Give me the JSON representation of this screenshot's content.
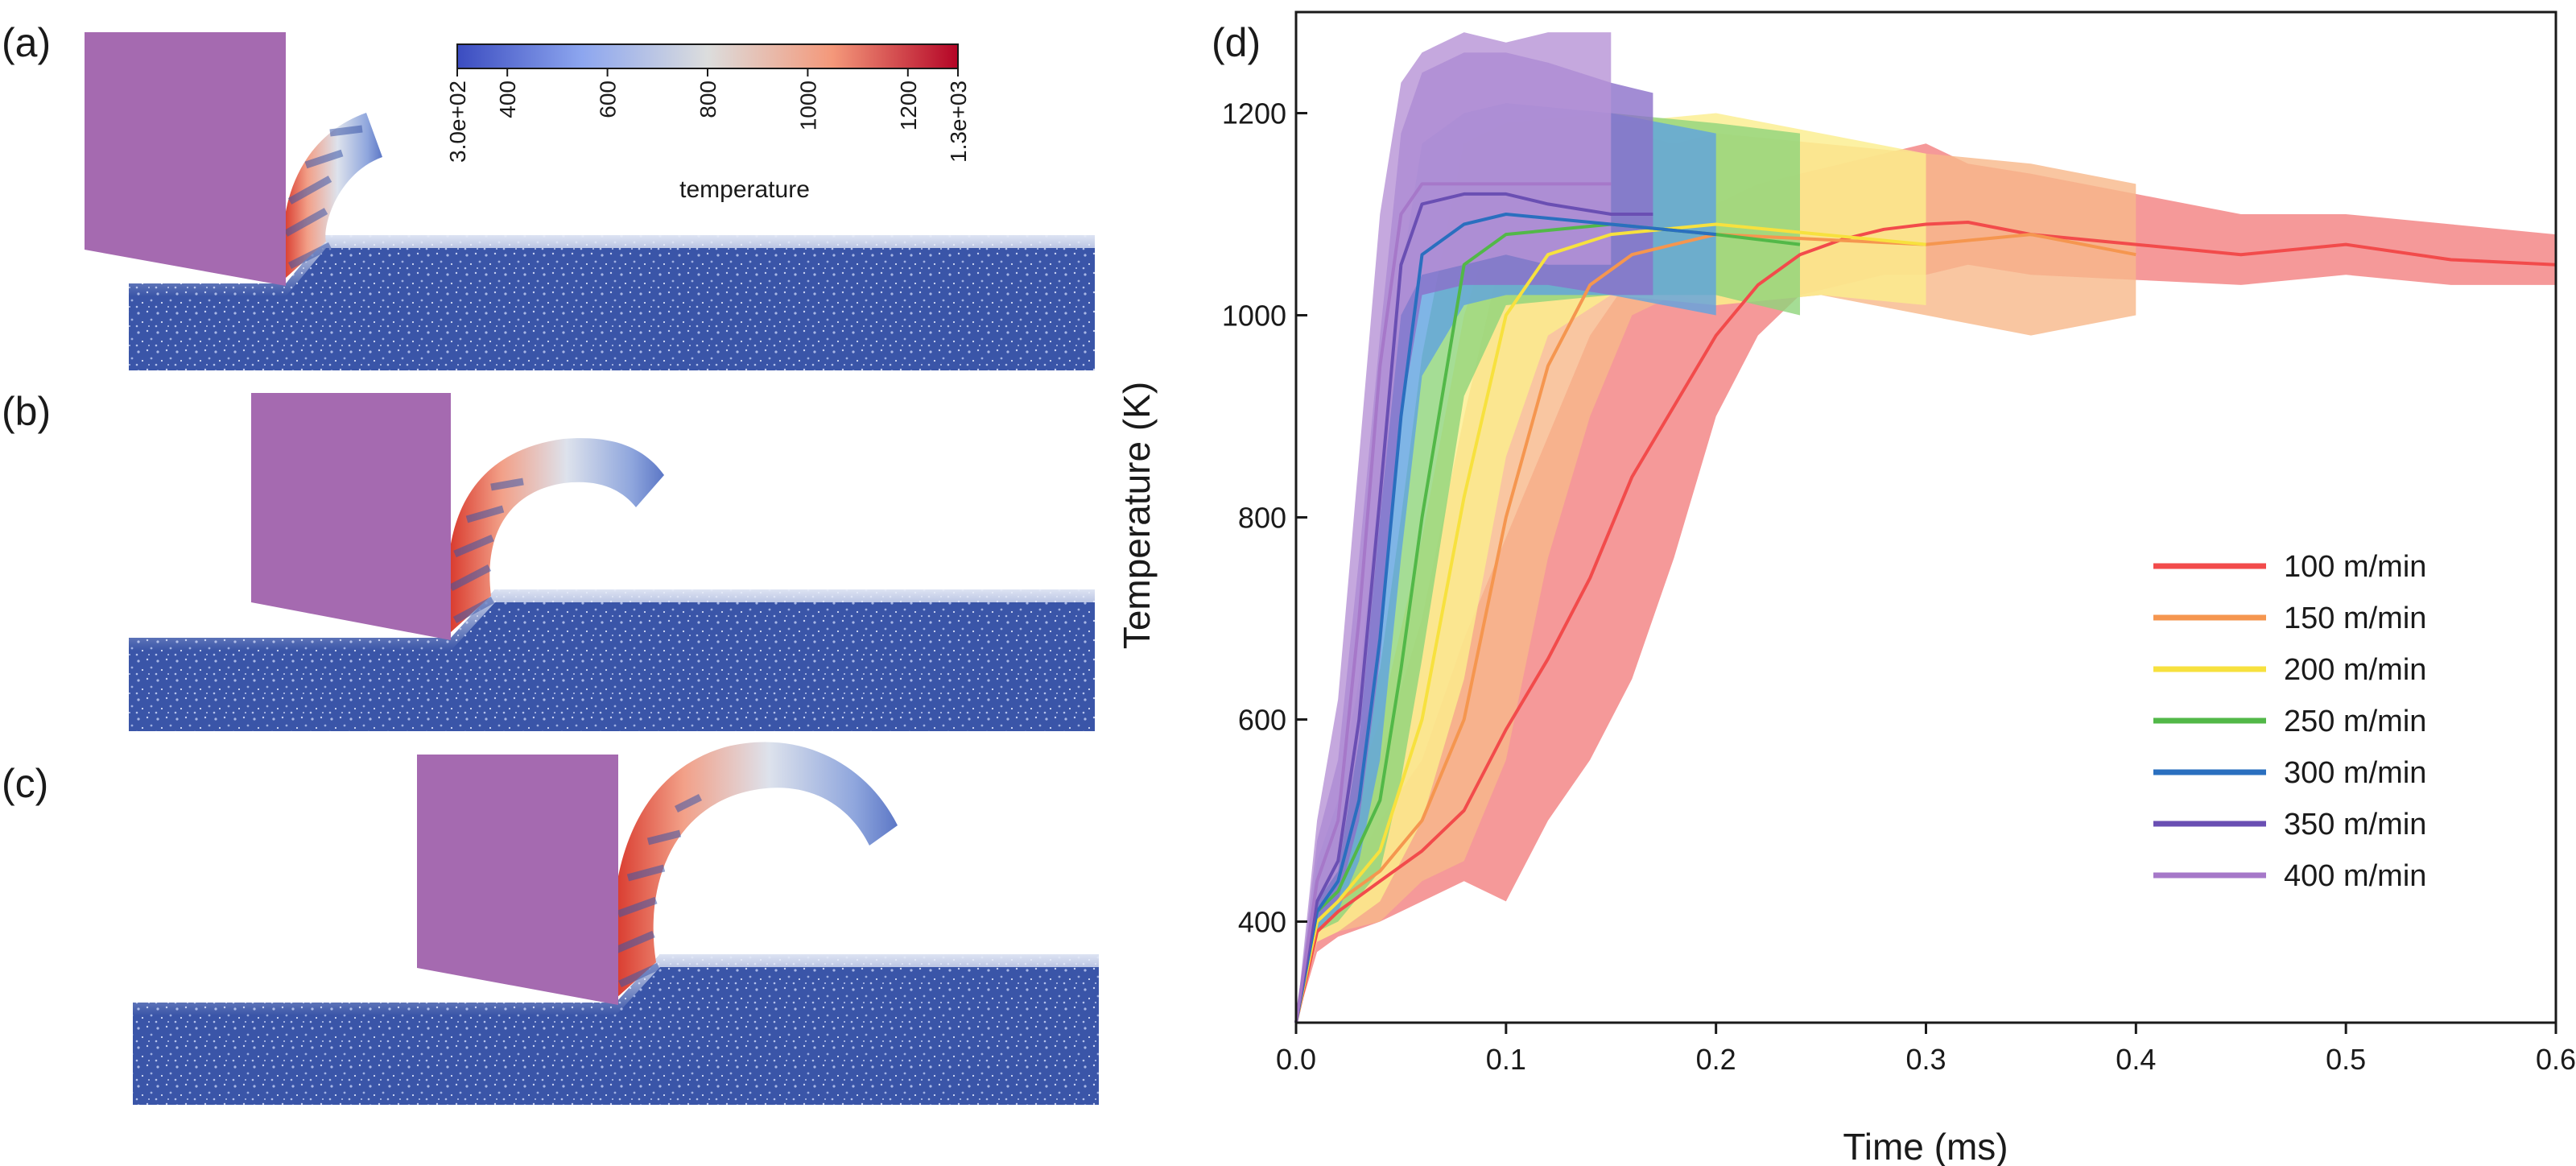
{
  "panels": {
    "a": {
      "label": "(a)"
    },
    "b": {
      "label": "(b)"
    },
    "c": {
      "label": "(c)"
    },
    "d": {
      "label": "(d)"
    }
  },
  "colorbar": {
    "title": "temperature",
    "ticks": [
      "3.0e+02",
      "400",
      "600",
      "800",
      "1000",
      "1200",
      "1.3e+03"
    ],
    "tick_values": [
      300,
      400,
      600,
      800,
      1000,
      1200,
      1300
    ],
    "colors": [
      "#3b4cc0",
      "#8da6ef",
      "#dcdddd",
      "#f4987a",
      "#b40426"
    ]
  },
  "simulation": {
    "tool_color": "#a56ab0",
    "workpiece_color": "#3a55a8"
  },
  "chart_data": {
    "type": "line",
    "xlabel": "Time (ms)",
    "ylabel": "Temperature (K)",
    "xlim": [
      0,
      0.6
    ],
    "ylim": [
      300,
      1300
    ],
    "xticks": [
      0.0,
      0.1,
      0.2,
      0.3,
      0.4,
      0.5,
      0.6
    ],
    "xtick_labels": [
      "0.0",
      "0.1",
      "0.2",
      "0.3",
      "0.4",
      "0.5",
      "0.6"
    ],
    "yticks": [
      400,
      600,
      800,
      1000,
      1200
    ],
    "ytick_labels": [
      "400",
      "600",
      "800",
      "1000",
      "1200"
    ],
    "grid": false,
    "legend_position": "right-center",
    "series": [
      {
        "name": "100 m/min",
        "color": "#f24b4b",
        "band_color": "#f28080",
        "x": [
          0,
          0.01,
          0.02,
          0.04,
          0.06,
          0.08,
          0.1,
          0.12,
          0.14,
          0.16,
          0.18,
          0.2,
          0.22,
          0.24,
          0.26,
          0.28,
          0.3,
          0.32,
          0.35,
          0.4,
          0.45,
          0.5,
          0.55,
          0.6
        ],
        "mean": [
          300,
          390,
          410,
          440,
          470,
          510,
          590,
          660,
          740,
          840,
          910,
          980,
          1030,
          1060,
          1075,
          1085,
          1090,
          1092,
          1080,
          1070,
          1060,
          1070,
          1055,
          1050
        ],
        "lower": [
          300,
          370,
          385,
          400,
          420,
          440,
          420,
          500,
          560,
          640,
          760,
          900,
          980,
          1020,
          1030,
          1040,
          1040,
          1050,
          1040,
          1035,
          1030,
          1040,
          1030,
          1030
        ],
        "upper": [
          300,
          410,
          430,
          500,
          560,
          680,
          780,
          880,
          980,
          1040,
          1080,
          1110,
          1130,
          1140,
          1150,
          1160,
          1170,
          1150,
          1140,
          1120,
          1100,
          1100,
          1090,
          1080
        ]
      },
      {
        "name": "150 m/min",
        "color": "#f5964f",
        "band_color": "#f8b88a",
        "x": [
          0,
          0.01,
          0.02,
          0.04,
          0.06,
          0.08,
          0.1,
          0.12,
          0.14,
          0.16,
          0.18,
          0.2,
          0.25,
          0.3,
          0.35,
          0.4
        ],
        "mean": [
          300,
          400,
          420,
          450,
          500,
          600,
          800,
          950,
          1030,
          1060,
          1070,
          1080,
          1075,
          1070,
          1080,
          1060
        ],
        "lower": [
          300,
          380,
          390,
          400,
          440,
          460,
          560,
          760,
          900,
          1000,
          1020,
          1010,
          1020,
          1000,
          980,
          1000
        ],
        "upper": [
          300,
          430,
          470,
          560,
          700,
          900,
          1080,
          1150,
          1170,
          1180,
          1170,
          1180,
          1170,
          1160,
          1150,
          1130
        ]
      },
      {
        "name": "200 m/min",
        "color": "#f7e13e",
        "band_color": "#fbee8c",
        "x": [
          0,
          0.01,
          0.02,
          0.04,
          0.06,
          0.08,
          0.1,
          0.12,
          0.15,
          0.2,
          0.25,
          0.3
        ],
        "mean": [
          300,
          400,
          420,
          470,
          600,
          820,
          1000,
          1060,
          1080,
          1090,
          1080,
          1070
        ],
        "lower": [
          300,
          380,
          390,
          420,
          500,
          640,
          860,
          980,
          1020,
          1010,
          1020,
          1010
        ],
        "upper": [
          300,
          440,
          480,
          600,
          780,
          1000,
          1130,
          1170,
          1190,
          1200,
          1180,
          1160
        ]
      },
      {
        "name": "250 m/min",
        "color": "#52b848",
        "band_color": "#8fd47a",
        "x": [
          0,
          0.01,
          0.02,
          0.04,
          0.05,
          0.06,
          0.08,
          0.1,
          0.15,
          0.2,
          0.24
        ],
        "mean": [
          300,
          410,
          430,
          520,
          650,
          800,
          1050,
          1080,
          1090,
          1080,
          1070
        ],
        "lower": [
          300,
          390,
          400,
          450,
          540,
          660,
          920,
          1010,
          1020,
          1020,
          1000
        ],
        "upper": [
          300,
          450,
          500,
          650,
          800,
          960,
          1170,
          1190,
          1200,
          1190,
          1180
        ]
      },
      {
        "name": "300 m/min",
        "color": "#2a6fbf",
        "band_color": "#5fa3e0",
        "x": [
          0,
          0.01,
          0.02,
          0.03,
          0.04,
          0.05,
          0.06,
          0.08,
          0.1,
          0.15,
          0.2
        ],
        "mean": [
          300,
          410,
          440,
          520,
          680,
          900,
          1060,
          1090,
          1100,
          1090,
          1080
        ],
        "lower": [
          300,
          390,
          410,
          460,
          560,
          760,
          940,
          1010,
          1020,
          1020,
          1000
        ],
        "upper": [
          300,
          460,
          520,
          640,
          840,
          1040,
          1170,
          1200,
          1210,
          1200,
          1180
        ]
      },
      {
        "name": "350 m/min",
        "color": "#6a4fb3",
        "band_color": "#8b6fc9",
        "x": [
          0,
          0.01,
          0.02,
          0.03,
          0.04,
          0.05,
          0.06,
          0.08,
          0.1,
          0.12,
          0.15,
          0.17
        ],
        "mean": [
          300,
          420,
          460,
          600,
          820,
          1050,
          1110,
          1120,
          1120,
          1110,
          1100,
          1100
        ],
        "lower": [
          300,
          400,
          420,
          500,
          660,
          900,
          1020,
          1030,
          1030,
          1030,
          1020,
          1020
        ],
        "upper": [
          300,
          480,
          560,
          760,
          980,
          1180,
          1240,
          1260,
          1260,
          1250,
          1230,
          1220
        ]
      },
      {
        "name": "400 m/min",
        "color": "#a678c9",
        "band_color": "#b792d6",
        "x": [
          0,
          0.01,
          0.02,
          0.03,
          0.04,
          0.05,
          0.06,
          0.08,
          0.1,
          0.12,
          0.15
        ],
        "mean": [
          300,
          440,
          500,
          700,
          950,
          1100,
          1130,
          1130,
          1130,
          1130,
          1130
        ],
        "lower": [
          300,
          420,
          450,
          580,
          800,
          1000,
          1040,
          1050,
          1060,
          1050,
          1050
        ],
        "upper": [
          300,
          500,
          620,
          860,
          1100,
          1230,
          1260,
          1280,
          1270,
          1280,
          1280
        ]
      }
    ]
  }
}
